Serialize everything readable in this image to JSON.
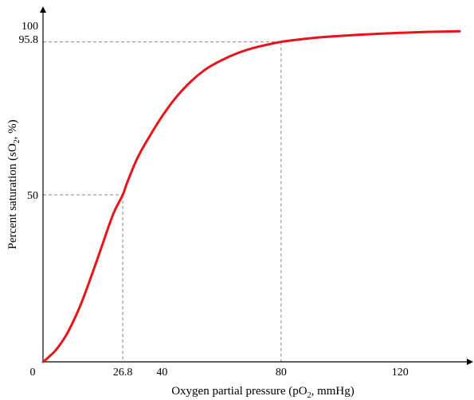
{
  "chart_data": {
    "type": "line",
    "title": "",
    "xlabel": "Oxygen partial pressure (pO",
    "xlabel_sub": "2",
    "xlabel_tail": ", mmHg)",
    "ylabel": "Percent saturation (sO",
    "ylabel_sub": "2",
    "ylabel_tail": ", %)",
    "xlim": [
      0,
      140
    ],
    "ylim": [
      0,
      100
    ],
    "x_ticks": [
      {
        "value": 0,
        "label": "0"
      },
      {
        "value": 26.8,
        "label": "26.8"
      },
      {
        "value": 40,
        "label": "40"
      },
      {
        "value": 80,
        "label": "80"
      },
      {
        "value": 120,
        "label": "120"
      }
    ],
    "y_ticks": [
      {
        "value": 50,
        "label": "50"
      },
      {
        "value": 95.8,
        "label": "95.8"
      },
      {
        "value": 100,
        "label": "100"
      }
    ],
    "reference_points": [
      {
        "x": 26.8,
        "y": 50
      },
      {
        "x": 80,
        "y": 95.8
      }
    ],
    "series": [
      {
        "color": "#e8141b",
        "x": [
          0,
          1,
          2,
          4,
          6,
          8,
          10,
          12,
          14,
          16,
          18,
          20,
          22,
          24,
          26.8,
          28,
          30,
          32,
          35,
          40,
          45,
          50,
          55,
          60,
          65,
          70,
          75,
          80,
          85,
          90,
          95,
          100,
          110,
          120,
          130,
          140
        ],
        "y": [
          0,
          0.7,
          1.5,
          3.2,
          5.5,
          8.3,
          11.8,
          15.7,
          20.2,
          25.1,
          30.1,
          35.2,
          40.4,
          45.1,
          50,
          53.0,
          57.5,
          61.5,
          66.3,
          73.5,
          79.5,
          84.2,
          87.8,
          90.3,
          92.3,
          93.8,
          94.9,
          95.8,
          96.4,
          96.9,
          97.3,
          97.6,
          98.1,
          98.5,
          98.8,
          99.0
        ]
      }
    ]
  }
}
